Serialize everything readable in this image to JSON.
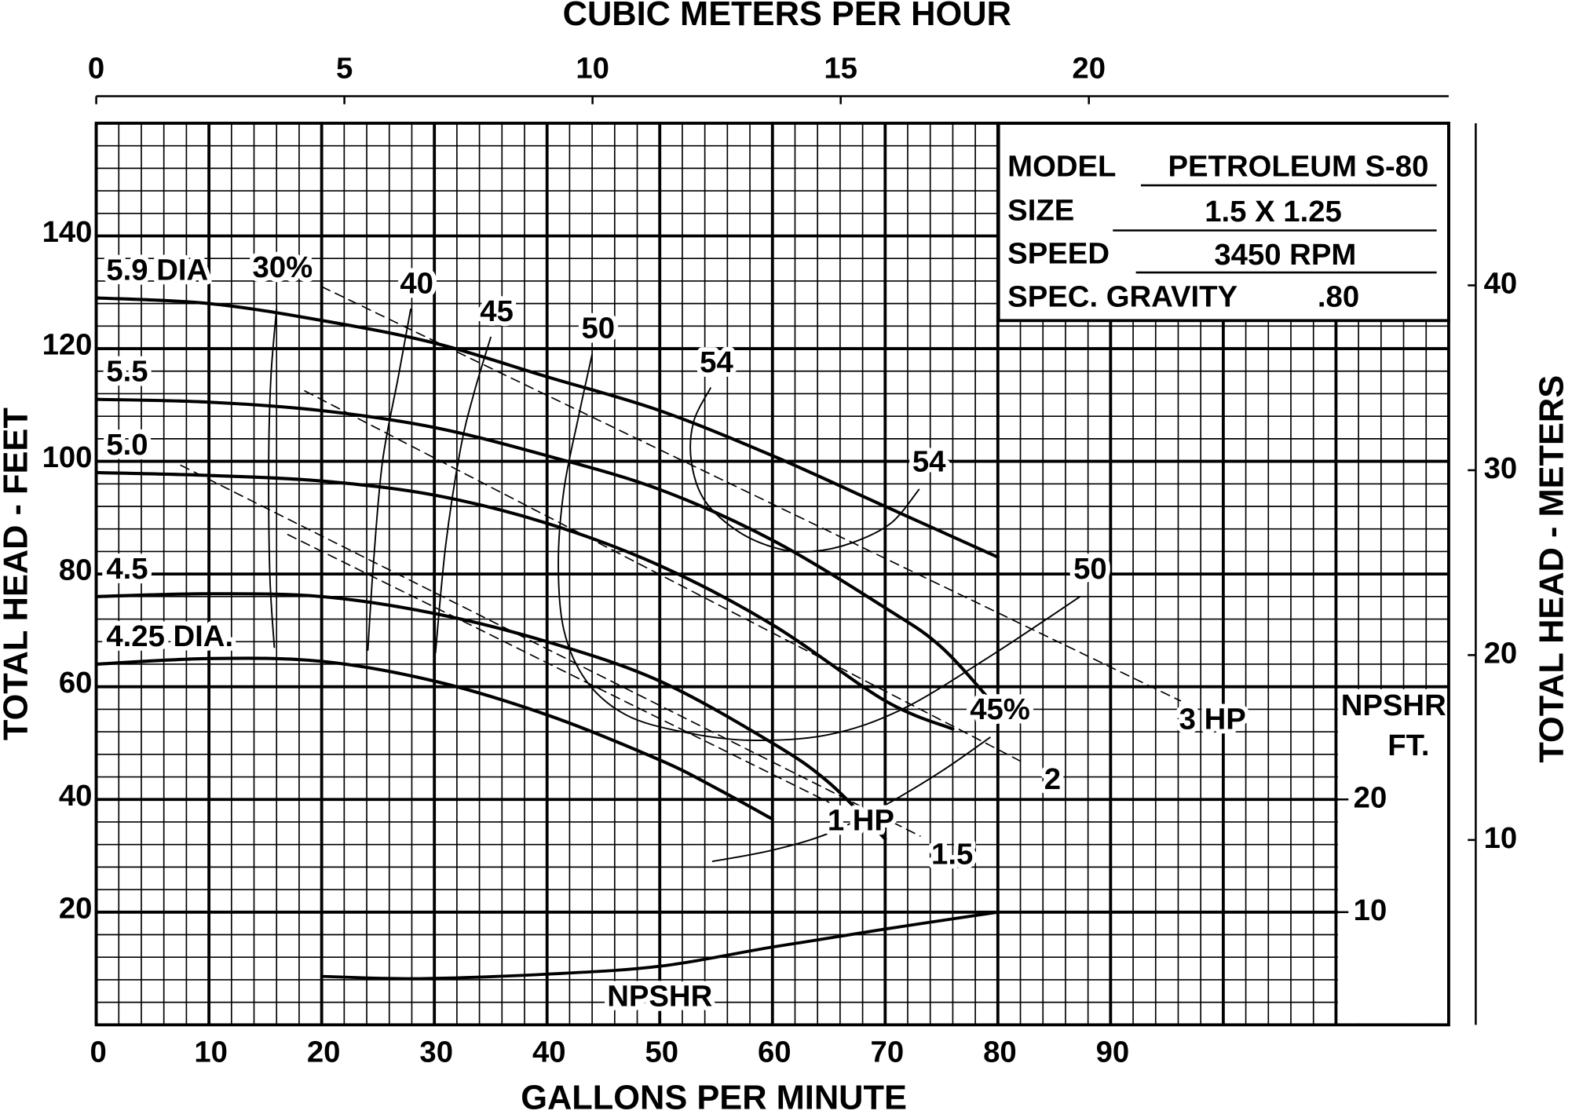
{
  "chart_data": {
    "type": "line",
    "x_label": "GALLONS PER MINUTE",
    "y_label": "TOTAL HEAD - FEET",
    "x2_label": "CUBIC METERS PER HOUR",
    "y2_label": "TOTAL HEAD - METERS",
    "y3_label": [
      "NPSHR",
      "FT."
    ],
    "xlim": [
      0,
      120
    ],
    "xticks": [
      0,
      10,
      20,
      30,
      40,
      50,
      60,
      70,
      80,
      90
    ],
    "xgrid_extra": [
      100,
      110
    ],
    "xminor_step": 2,
    "ylim": [
      0,
      160
    ],
    "yticks": [
      20,
      40,
      60,
      80,
      100,
      120,
      140
    ],
    "yminor_step": 4,
    "x2lim": [
      0,
      27.25
    ],
    "x2ticks": [
      0,
      5,
      10,
      15,
      20
    ],
    "y2lim": [
      0,
      48.77
    ],
    "y2ticks": [
      10,
      20,
      30,
      40
    ],
    "y3lim": [
      0,
      80
    ],
    "y3ticks": [
      10,
      20
    ],
    "grid": true,
    "series": [
      {
        "name": "5.9 DIA",
        "kind": "diameter",
        "color": "#000000",
        "label_at": [
          "start"
        ],
        "x": [
          0,
          10,
          20,
          30,
          40,
          50,
          60,
          70,
          80
        ],
        "values": [
          129,
          128,
          125,
          121,
          115,
          109,
          101,
          92,
          83
        ]
      },
      {
        "name": "5.5",
        "kind": "diameter",
        "color": "#000000",
        "label_at": [
          "start"
        ],
        "x": [
          0,
          10,
          20,
          30,
          40,
          50,
          60,
          70,
          75,
          80
        ],
        "values": [
          111,
          110.5,
          109,
          106,
          101,
          95,
          86,
          74,
          67,
          56
        ]
      },
      {
        "name": "5.0",
        "kind": "diameter",
        "color": "#000000",
        "label_at": [
          "start"
        ],
        "x": [
          0,
          10,
          20,
          30,
          40,
          50,
          60,
          70,
          76
        ],
        "values": [
          98,
          97.5,
          96.5,
          94,
          89,
          81.5,
          71,
          57.5,
          52.5
        ]
      },
      {
        "name": "4.5",
        "kind": "diameter",
        "color": "#000000",
        "label_at": [
          "start"
        ],
        "x": [
          0,
          10,
          20,
          30,
          40,
          50,
          60,
          65,
          70
        ],
        "values": [
          76,
          76.5,
          76,
          73,
          68,
          61,
          50,
          43,
          33
        ]
      },
      {
        "name": "4.25 DIA.",
        "kind": "diameter",
        "color": "#000000",
        "label_at": [
          "start"
        ],
        "x": [
          0,
          10,
          20,
          30,
          40,
          50,
          55,
          60
        ],
        "values": [
          64,
          65,
          64.5,
          61,
          55,
          47,
          42,
          36.5
        ]
      },
      {
        "name": "30%",
        "kind": "efficiency",
        "color": "#000000",
        "label_at": [
          "start"
        ],
        "x": [
          16,
          15.5,
          15.3,
          15.4,
          15.8
        ],
        "values": [
          127,
          115,
          100,
          80,
          67
        ]
      },
      {
        "name": "40",
        "kind": "efficiency",
        "color": "#000000",
        "label_at": [
          "start"
        ],
        "x": [
          27.9,
          26.8,
          25.4,
          24.6,
          24.1
        ],
        "values": [
          127,
          115,
          100,
          82,
          66.5
        ]
      },
      {
        "name": "45",
        "kind": "efficiency",
        "color": "#000000",
        "label_at": [
          "start"
        ],
        "x": [
          35,
          33.5,
          32.3,
          31,
          30.1
        ],
        "values": [
          122,
          112,
          102,
          85,
          66
        ]
      },
      {
        "name": "50",
        "kind": "efficiency",
        "color": "#000000",
        "label_at": [
          "start",
          "end"
        ],
        "x": [
          44,
          42.8,
          41.5,
          41,
          41.5,
          43.5,
          47,
          52,
          58,
          65,
          71.5,
          79,
          87.3
        ],
        "values": [
          119,
          108,
          95,
          82,
          70,
          61,
          55,
          52,
          50.5,
          51.5,
          56,
          65,
          76
        ]
      },
      {
        "name": "54",
        "kind": "efficiency",
        "color": "#000000",
        "label_at": [
          "start",
          "end"
        ],
        "x": [
          54.5,
          53,
          52.8,
          54,
          57,
          60.5,
          63.5,
          67,
          70.5,
          73
        ],
        "values": [
          113,
          107,
          100,
          93,
          87.5,
          84.5,
          84,
          85.5,
          89,
          95
        ]
      },
      {
        "name": "45%",
        "kind": "efficiency",
        "color": "#000000",
        "label_at": [
          "end"
        ],
        "x": [
          54.7,
          60,
          65,
          70,
          75,
          79.3
        ],
        "values": [
          29,
          31,
          34,
          39,
          45,
          51
        ]
      },
      {
        "name": "3 HP",
        "kind": "hp",
        "color": "#000000",
        "label_at": [
          "end"
        ],
        "x": [
          20,
          96.2
        ],
        "values": [
          131,
          57.5
        ]
      },
      {
        "name": "2",
        "kind": "hp",
        "color": "#000000",
        "label_at": [
          "end"
        ],
        "x": [
          18.5,
          82
        ],
        "values": [
          112.5,
          46.8
        ]
      },
      {
        "name": "1.5",
        "kind": "hp",
        "color": "#000000",
        "label_at": [
          "end"
        ],
        "x": [
          7.5,
          73.1
        ],
        "values": [
          99.3,
          33.5
        ]
      },
      {
        "name": "1 HP",
        "kind": "hp",
        "color": "#000000",
        "label_at": [
          "end"
        ],
        "x": [
          17,
          65
        ],
        "values": [
          87,
          39.5
        ]
      },
      {
        "name": "NPSHR",
        "kind": "npshr",
        "color": "#000000",
        "axis": "y3",
        "label_at": [
          "below"
        ],
        "x": [
          20,
          28.7,
          40,
          50,
          60,
          70,
          80
        ],
        "values": [
          4.3,
          4.1,
          4.5,
          5.2,
          6.9,
          8.5,
          10
        ]
      }
    ],
    "info": [
      {
        "label": "MODEL",
        "value": "PETROLEUM S-80"
      },
      {
        "label": "SIZE",
        "value": "1.5 X 1.25"
      },
      {
        "label": "SPEED",
        "value": "3450 RPM"
      },
      {
        "label": "SPEC. GRAVITY",
        "value": ".80"
      }
    ]
  }
}
